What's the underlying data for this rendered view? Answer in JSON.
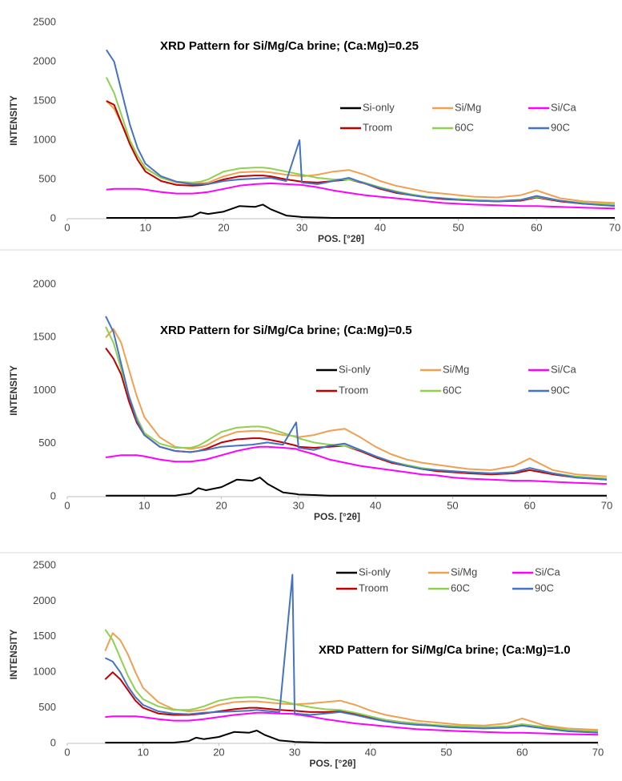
{
  "chart_data": [
    {
      "type": "line",
      "title": "XRD Pattern for Si/Mg/Ca brine; (Ca:Mg)=0.25",
      "xlabel": "POS. [°2θ]",
      "ylabel": "INTENSITY",
      "x": [
        5,
        6,
        7,
        8,
        9,
        10,
        12,
        14,
        16,
        17,
        18,
        20,
        22,
        24,
        25,
        26,
        28,
        29.7,
        30,
        32,
        34,
        36,
        38,
        40,
        42,
        44,
        46,
        48,
        50,
        52,
        55,
        58,
        60,
        63,
        66,
        70
      ],
      "xlim": [
        0,
        70
      ],
      "xticks": [
        0,
        10,
        20,
        30,
        40,
        50,
        60,
        70
      ],
      "ylim": [
        0,
        2500
      ],
      "yticks": [
        0,
        500,
        1000,
        1500,
        2000,
        2500
      ],
      "legend": "right",
      "series": [
        {
          "name": "Si-only",
          "color": "#000000",
          "values": [
            10,
            10,
            10,
            10,
            10,
            10,
            10,
            10,
            30,
            80,
            60,
            90,
            160,
            150,
            180,
            120,
            40,
            25,
            20,
            15,
            10,
            10,
            10,
            10,
            10,
            10,
            10,
            10,
            10,
            10,
            10,
            10,
            10,
            10,
            10,
            10
          ]
        },
        {
          "name": "Si/Mg",
          "color": "#f0a050",
          "values": [
            1500,
            1400,
            1200,
            1000,
            800,
            650,
            520,
            460,
            440,
            450,
            460,
            540,
            590,
            600,
            600,
            590,
            560,
            545,
            540,
            560,
            600,
            620,
            560,
            480,
            420,
            380,
            340,
            320,
            300,
            280,
            270,
            300,
            360,
            260,
            220,
            200
          ]
        },
        {
          "name": "Si/Ca",
          "color": "#ff00ff",
          "values": [
            370,
            380,
            380,
            380,
            380,
            370,
            340,
            320,
            320,
            330,
            340,
            380,
            420,
            440,
            445,
            450,
            440,
            432,
            430,
            400,
            360,
            330,
            300,
            280,
            260,
            240,
            220,
            200,
            190,
            180,
            170,
            160,
            160,
            150,
            140,
            130
          ]
        },
        {
          "name": "Troom",
          "color": "#c00000",
          "values": [
            1500,
            1450,
            1200,
            950,
            750,
            600,
            480,
            430,
            420,
            425,
            440,
            500,
            540,
            550,
            550,
            540,
            500,
            475,
            470,
            460,
            480,
            500,
            450,
            380,
            330,
            300,
            270,
            250,
            240,
            230,
            220,
            230,
            270,
            220,
            190,
            170
          ]
        },
        {
          "name": "60C",
          "color": "#8fd14f",
          "values": [
            1800,
            1600,
            1300,
            1000,
            800,
            640,
            520,
            470,
            460,
            470,
            500,
            600,
            640,
            650,
            650,
            640,
            600,
            565,
            560,
            520,
            500,
            500,
            460,
            400,
            350,
            310,
            280,
            260,
            250,
            240,
            230,
            240,
            280,
            230,
            200,
            180
          ]
        },
        {
          "name": "90C",
          "color": "#4472c4",
          "values": [
            2150,
            2000,
            1600,
            1200,
            900,
            700,
            540,
            470,
            440,
            440,
            440,
            480,
            500,
            510,
            515,
            520,
            480,
            1000,
            460,
            440,
            480,
            520,
            450,
            390,
            340,
            300,
            270,
            260,
            240,
            230,
            220,
            240,
            290,
            230,
            190,
            160
          ]
        }
      ]
    },
    {
      "type": "line",
      "title": "XRD Pattern for Si/Mg/Ca brine; (Ca:Mg)=0.5",
      "xlabel": "POS. [°2θ]",
      "ylabel": "INTENSITY",
      "x": [
        5,
        6,
        7,
        8,
        9,
        10,
        12,
        14,
        16,
        17,
        18,
        20,
        22,
        24,
        25,
        26,
        28,
        29.7,
        30,
        32,
        34,
        36,
        38,
        40,
        42,
        44,
        46,
        48,
        50,
        52,
        55,
        58,
        60,
        63,
        66,
        70
      ],
      "xlim": [
        0,
        70
      ],
      "xticks": [
        0,
        10,
        20,
        30,
        40,
        50,
        60,
        70
      ],
      "ylim": [
        0,
        2000
      ],
      "yticks": [
        0,
        500,
        1000,
        1500,
        2000
      ],
      "legend": "right",
      "series": [
        {
          "name": "Si-only",
          "color": "#000000",
          "values": [
            10,
            10,
            10,
            10,
            10,
            10,
            10,
            10,
            30,
            80,
            60,
            90,
            160,
            150,
            180,
            120,
            40,
            25,
            20,
            15,
            10,
            10,
            10,
            10,
            10,
            10,
            10,
            10,
            10,
            10,
            10,
            10,
            10,
            10,
            10,
            10
          ]
        },
        {
          "name": "Si/Mg",
          "color": "#f0a050",
          "values": [
            1500,
            1580,
            1450,
            1200,
            950,
            750,
            560,
            470,
            450,
            460,
            480,
            560,
            610,
            620,
            620,
            610,
            580,
            570,
            560,
            580,
            620,
            640,
            560,
            470,
            400,
            350,
            320,
            300,
            280,
            260,
            250,
            290,
            360,
            250,
            210,
            190
          ]
        },
        {
          "name": "Si/Ca",
          "color": "#ff00ff",
          "values": [
            370,
            380,
            390,
            390,
            390,
            380,
            350,
            330,
            330,
            340,
            350,
            390,
            430,
            460,
            470,
            470,
            460,
            450,
            440,
            400,
            350,
            320,
            290,
            270,
            250,
            230,
            210,
            200,
            180,
            170,
            160,
            150,
            150,
            140,
            130,
            120
          ]
        },
        {
          "name": "Troom",
          "color": "#c00000",
          "values": [
            1400,
            1300,
            1150,
            900,
            700,
            580,
            470,
            430,
            420,
            430,
            450,
            510,
            540,
            550,
            550,
            540,
            510,
            480,
            470,
            460,
            470,
            480,
            430,
            370,
            320,
            290,
            260,
            240,
            230,
            220,
            210,
            220,
            250,
            210,
            180,
            160
          ]
        },
        {
          "name": "60C",
          "color": "#8fd14f",
          "values": [
            1600,
            1450,
            1200,
            950,
            750,
            600,
            500,
            460,
            460,
            480,
            520,
            610,
            650,
            660,
            660,
            650,
            600,
            560,
            550,
            510,
            490,
            480,
            440,
            380,
            330,
            300,
            270,
            250,
            240,
            230,
            220,
            230,
            270,
            220,
            190,
            170
          ]
        },
        {
          "name": "90C",
          "color": "#4472c4",
          "values": [
            1700,
            1550,
            1250,
            950,
            720,
            580,
            470,
            430,
            420,
            430,
            440,
            470,
            480,
            490,
            500,
            510,
            490,
            700,
            460,
            440,
            480,
            500,
            440,
            380,
            330,
            290,
            260,
            250,
            240,
            230,
            220,
            230,
            270,
            220,
            180,
            160
          ]
        }
      ]
    },
    {
      "type": "line",
      "title": "XRD Pattern for Si/Mg/Ca brine; (Ca:Mg)=1.0",
      "xlabel": "POS. [°2θ]",
      "ylabel": "INTENSITY",
      "x": [
        5,
        6,
        7,
        8,
        9,
        10,
        12,
        14,
        16,
        17,
        18,
        20,
        22,
        24,
        25,
        26,
        28,
        29.7,
        30,
        32,
        34,
        36,
        38,
        40,
        42,
        44,
        46,
        48,
        50,
        52,
        55,
        58,
        60,
        63,
        66,
        70
      ],
      "xlim": [
        0,
        70
      ],
      "xticks": [
        0,
        10,
        20,
        30,
        40,
        50,
        60,
        70
      ],
      "ylim": [
        0,
        2500
      ],
      "yticks": [
        0,
        500,
        1000,
        1500,
        2000,
        2500
      ],
      "legend": "top-right",
      "series": [
        {
          "name": "Si-only",
          "color": "#000000",
          "values": [
            10,
            10,
            10,
            10,
            10,
            10,
            10,
            10,
            30,
            80,
            60,
            90,
            160,
            150,
            180,
            120,
            40,
            25,
            20,
            15,
            10,
            10,
            10,
            10,
            10,
            10,
            10,
            10,
            10,
            10,
            10,
            10,
            10,
            10,
            10,
            10
          ]
        },
        {
          "name": "Si/Mg",
          "color": "#f0a050",
          "values": [
            1300,
            1550,
            1450,
            1250,
            1000,
            780,
            580,
            480,
            450,
            460,
            470,
            540,
            580,
            590,
            590,
            580,
            560,
            550,
            550,
            560,
            580,
            600,
            540,
            460,
            400,
            360,
            320,
            300,
            280,
            260,
            250,
            280,
            350,
            250,
            210,
            190
          ]
        },
        {
          "name": "Si/Ca",
          "color": "#ff00ff",
          "values": [
            370,
            380,
            380,
            380,
            380,
            370,
            340,
            320,
            320,
            330,
            340,
            370,
            400,
            420,
            430,
            430,
            420,
            415,
            410,
            380,
            340,
            310,
            280,
            260,
            240,
            220,
            200,
            190,
            180,
            170,
            160,
            150,
            150,
            140,
            130,
            120
          ]
        },
        {
          "name": "Troom",
          "color": "#c00000",
          "values": [
            900,
            1000,
            900,
            750,
            600,
            500,
            420,
            400,
            400,
            410,
            420,
            450,
            480,
            500,
            500,
            490,
            470,
            460,
            460,
            440,
            440,
            450,
            420,
            370,
            330,
            300,
            280,
            260,
            240,
            230,
            220,
            220,
            250,
            210,
            180,
            160
          ]
        },
        {
          "name": "60C",
          "color": "#8fd14f",
          "values": [
            1600,
            1450,
            1200,
            950,
            750,
            620,
            520,
            470,
            470,
            490,
            520,
            600,
            640,
            650,
            650,
            640,
            600,
            560,
            550,
            510,
            480,
            470,
            430,
            380,
            330,
            300,
            280,
            260,
            250,
            240,
            230,
            240,
            270,
            230,
            190,
            170
          ]
        },
        {
          "name": "90C",
          "color": "#4472c4",
          "values": [
            1200,
            1150,
            1000,
            800,
            650,
            540,
            450,
            420,
            410,
            420,
            430,
            440,
            450,
            460,
            470,
            460,
            440,
            2370,
            420,
            400,
            420,
            440,
            400,
            350,
            310,
            280,
            260,
            250,
            230,
            220,
            210,
            220,
            250,
            210,
            170,
            150
          ]
        }
      ]
    }
  ]
}
